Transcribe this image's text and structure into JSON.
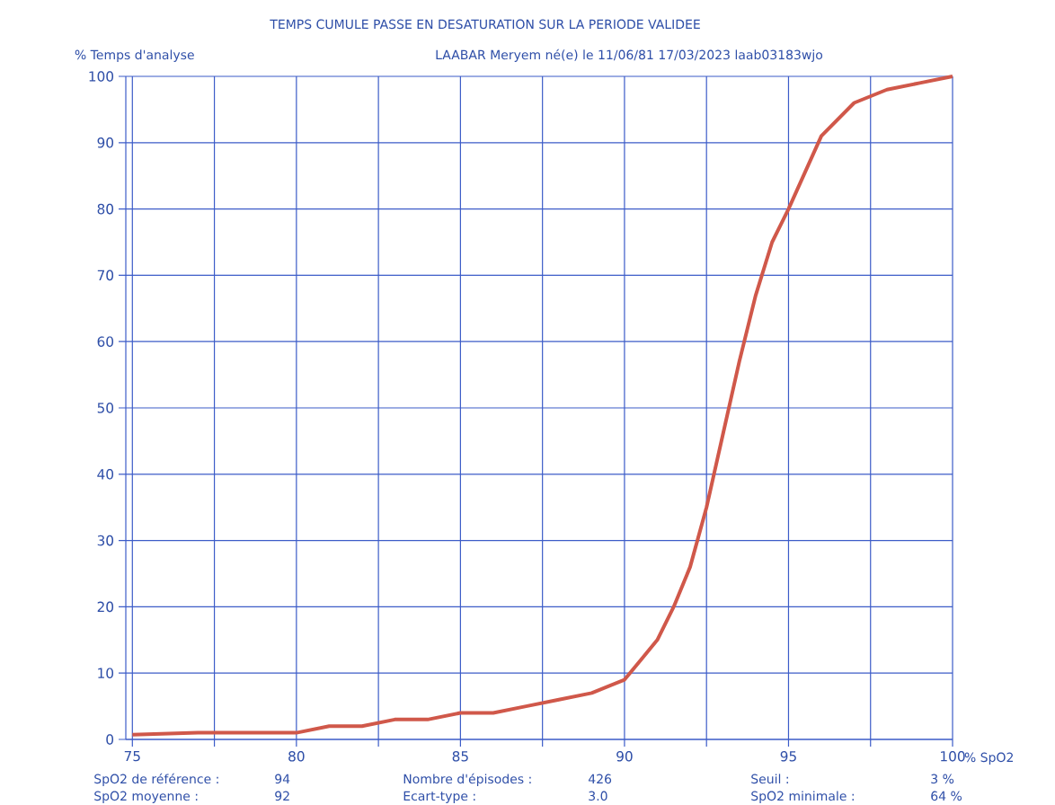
{
  "chart_data": {
    "type": "line",
    "title": "TEMPS CUMULE PASSE EN DESATURATION SUR LA PERIODE VALIDEE",
    "subtitle": "LAABAR Meryem né(e) le 11/06/81    17/03/2023 laab03183wjo",
    "xlabel": "% SpO2",
    "ylabel": "% Temps d'analyse",
    "x": [
      75,
      77,
      80,
      81,
      82,
      83,
      84,
      85,
      86,
      87,
      88,
      89,
      90,
      90.5,
      91,
      91.5,
      92,
      92.5,
      93,
      93.5,
      94,
      94.5,
      95,
      96,
      97,
      98,
      99,
      100
    ],
    "series": [
      {
        "color": "#d0584a",
        "values": [
          0.7,
          1,
          1,
          2,
          2,
          3,
          3,
          4,
          4,
          5,
          6,
          7,
          9,
          12,
          15,
          20,
          26,
          35,
          46,
          57,
          67,
          75,
          80,
          91,
          96,
          98,
          99,
          100
        ]
      }
    ],
    "xlim": [
      74.8,
      100
    ],
    "ylim": [
      0,
      100
    ],
    "xticks": [
      75,
      {
        "value": 77.5,
        "label": null
      },
      80,
      {
        "value": 82.5,
        "label": null
      },
      85,
      {
        "value": 87.5,
        "label": null
      },
      90,
      {
        "value": 92.5,
        "label": null
      },
      95,
      {
        "value": 97.5,
        "label": null
      },
      100
    ],
    "yticks": [
      0,
      10,
      20,
      30,
      40,
      50,
      60,
      70,
      80,
      90,
      100
    ],
    "grid": true,
    "marker": "none",
    "line_style": "solid",
    "annotations": [
      "SpO2 de référence :",
      "94",
      "Nombre d'épisodes :",
      "426",
      "Seuil :",
      "3 %",
      "SpO2 moyenne :",
      "92",
      "Ecart-type :",
      "3.0",
      "SpO2 minimale :",
      "64 %"
    ]
  }
}
